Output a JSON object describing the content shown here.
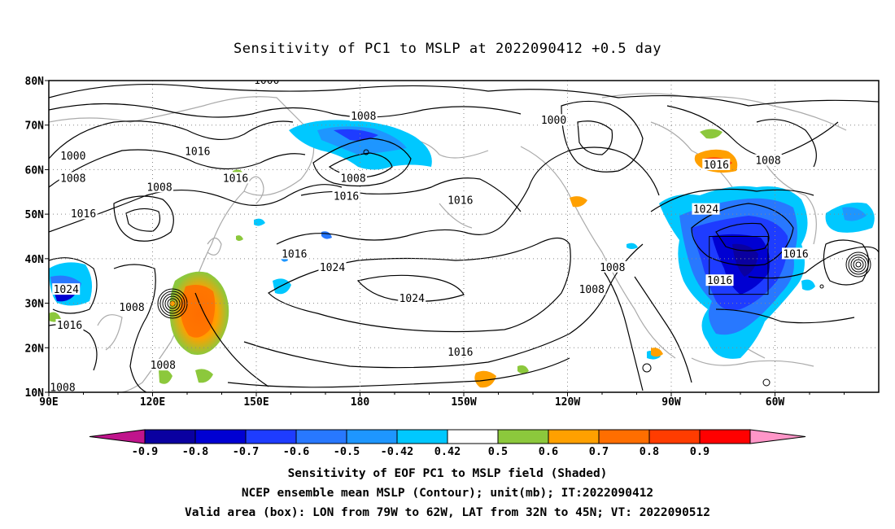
{
  "title": "Sensitivity of PC1 to MSLP at 2022090412 +0.5 day",
  "map": {
    "lat_labels": [
      "80N",
      "70N",
      "60N",
      "50N",
      "40N",
      "30N",
      "20N",
      "10N"
    ],
    "lon_labels": [
      "90E",
      "120E",
      "150E",
      "180",
      "150W",
      "120W",
      "90W",
      "60W"
    ],
    "contour_labels": [
      {
        "text": "1000",
        "lon": 153,
        "lat": 80
      },
      {
        "text": "1008",
        "lon": 181,
        "lat": 72
      },
      {
        "text": "1000",
        "lon": 236,
        "lat": 71
      },
      {
        "text": "1000",
        "lon": 97,
        "lat": 63
      },
      {
        "text": "1016",
        "lon": 133,
        "lat": 64
      },
      {
        "text": "1008",
        "lon": 97,
        "lat": 58
      },
      {
        "text": "1016",
        "lon": 144,
        "lat": 58
      },
      {
        "text": "1008",
        "lon": 178,
        "lat": 58
      },
      {
        "text": "1016",
        "lon": 283,
        "lat": 61
      },
      {
        "text": "1008",
        "lon": 298,
        "lat": 62
      },
      {
        "text": "1008",
        "lon": 122,
        "lat": 56
      },
      {
        "text": "1016",
        "lon": 176,
        "lat": 54
      },
      {
        "text": "1016",
        "lon": 100,
        "lat": 50
      },
      {
        "text": "1016",
        "lon": 209,
        "lat": 53
      },
      {
        "text": "1024",
        "lon": 280,
        "lat": 51
      },
      {
        "text": "1016",
        "lon": 161,
        "lat": 41
      },
      {
        "text": "1024",
        "lon": 172,
        "lat": 38
      },
      {
        "text": "1008",
        "lon": 253,
        "lat": 38
      },
      {
        "text": "1016",
        "lon": 306,
        "lat": 41
      },
      {
        "text": "1008",
        "lon": 247,
        "lat": 33
      },
      {
        "text": "1016",
        "lon": 284,
        "lat": 35
      },
      {
        "text": "1024",
        "lon": 95,
        "lat": 33
      },
      {
        "text": "1024",
        "lon": 195,
        "lat": 31
      },
      {
        "text": "1008",
        "lon": 114,
        "lat": 29
      },
      {
        "text": "1016",
        "lon": 96,
        "lat": 25
      },
      {
        "text": "1016",
        "lon": 209,
        "lat": 19
      },
      {
        "text": "1008",
        "lon": 123,
        "lat": 16
      },
      {
        "text": "1008",
        "lon": 94,
        "lat": 11
      }
    ]
  },
  "colorbar": {
    "tick_labels": [
      "-0.9",
      "-0.8",
      "-0.7",
      "-0.6",
      "-0.5",
      "-0.42",
      "0.42",
      "0.5",
      "0.6",
      "0.7",
      "0.8",
      "0.9"
    ],
    "colors": [
      "#c0148c",
      "#0a00a0",
      "#0000d2",
      "#1e3cff",
      "#2878ff",
      "#1e96ff",
      "#00c8ff",
      "#ffffff",
      "#8cc83c",
      "#ffa000",
      "#ff6e00",
      "#ff3c00",
      "#ff0000",
      "#ff96c8"
    ]
  },
  "captions": [
    "Sensitivity of EOF PC1 to MSLP field (Shaded)",
    "NCEP ensemble mean MSLP (Contour); unit(mb); IT:2022090412",
    "Valid area (box): LON from 79W to 62W, LAT from 32N to 45N; VT: 2022090512"
  ]
}
